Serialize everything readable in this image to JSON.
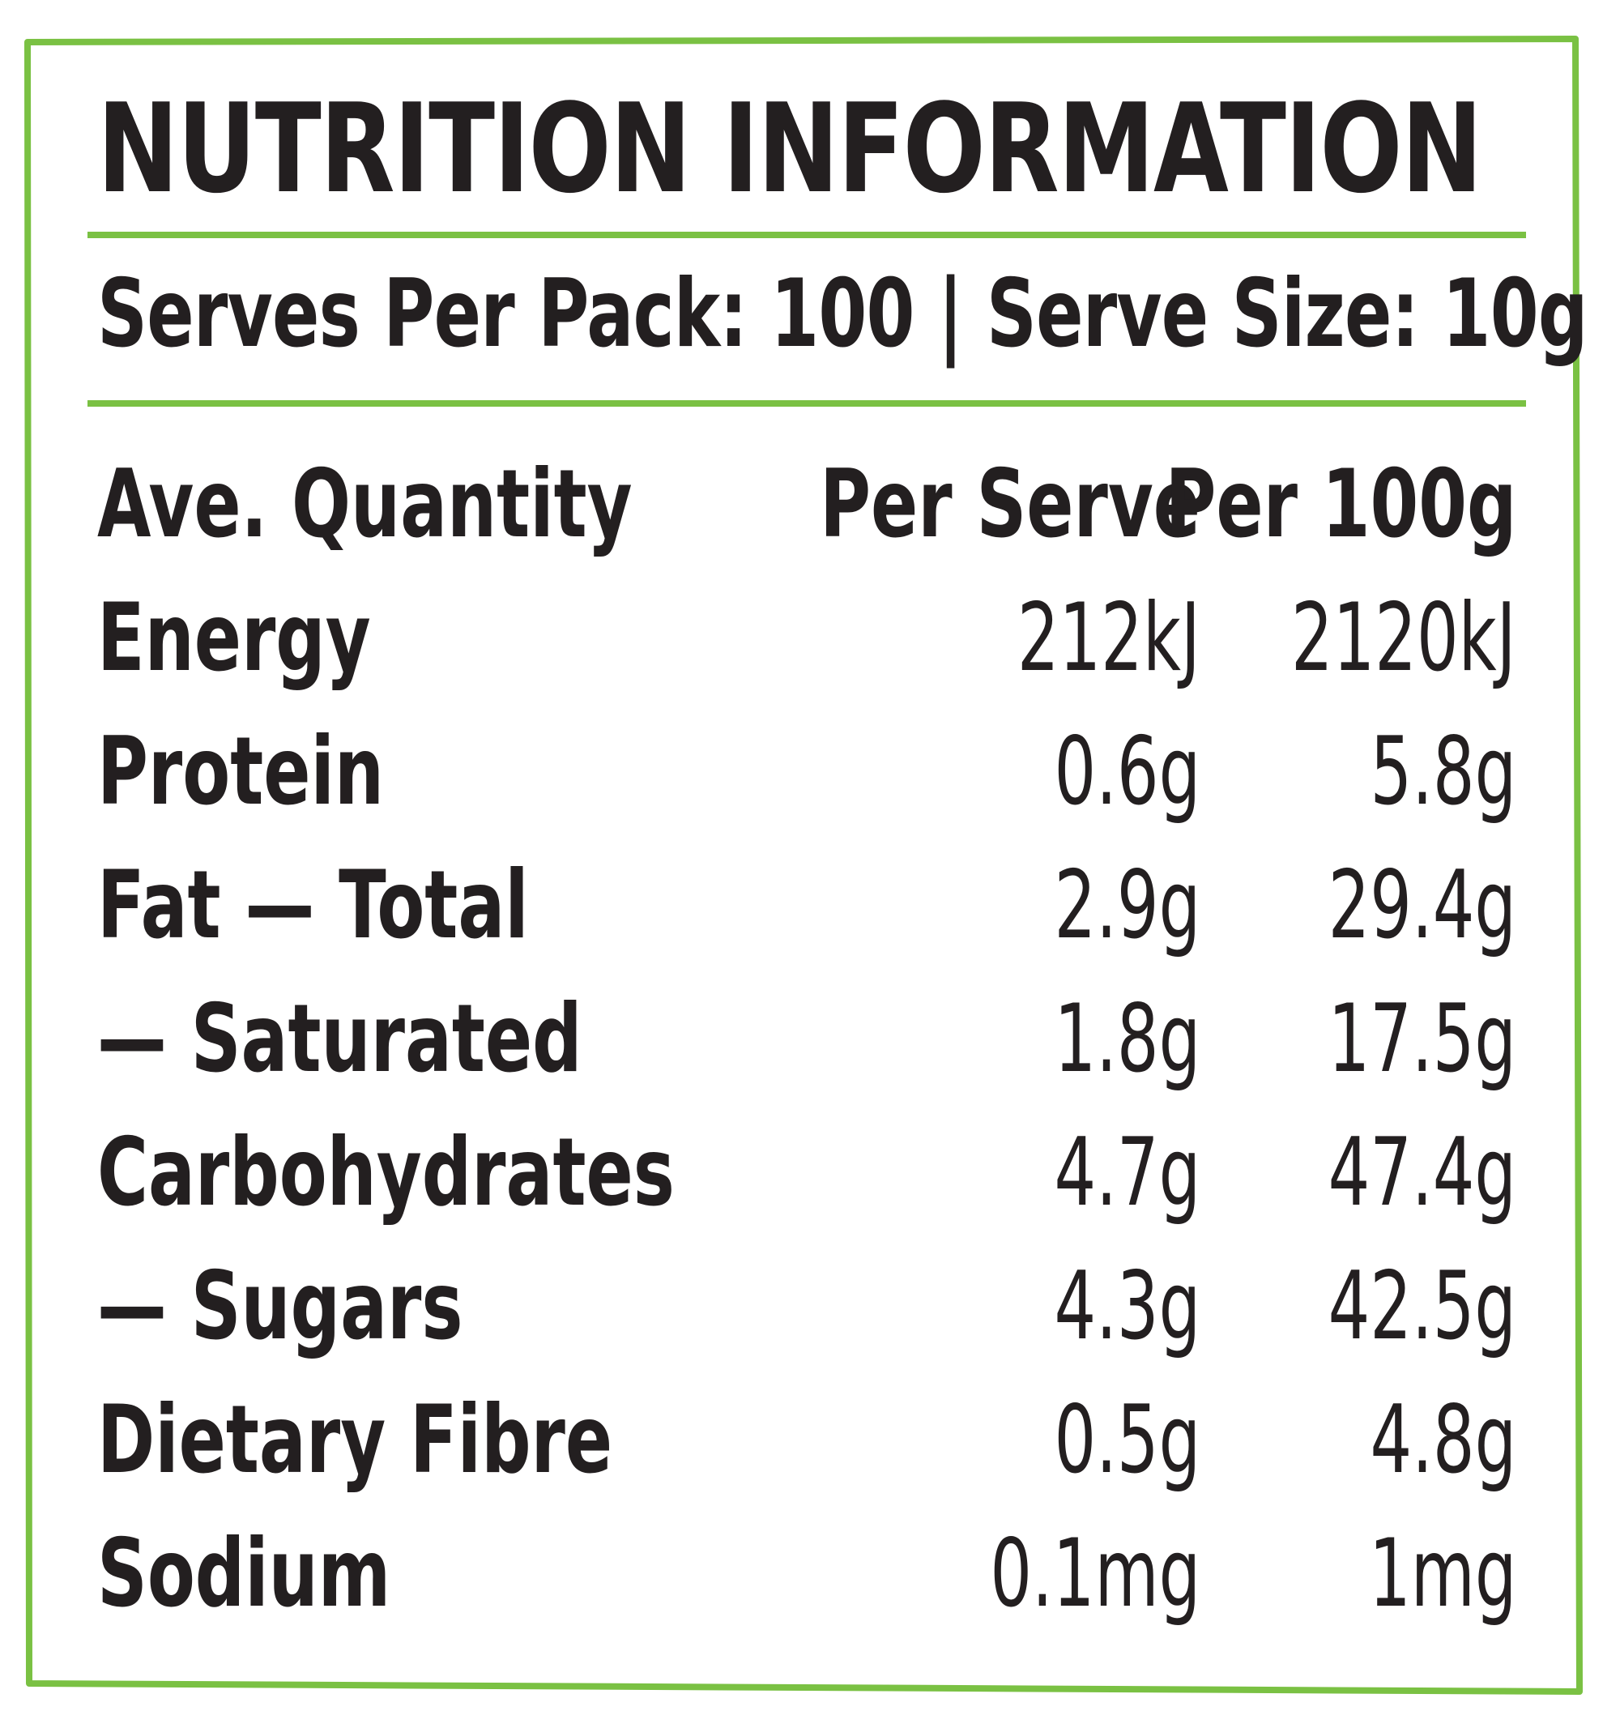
{
  "title": "NUTRITION INFORMATION",
  "serving_line": "Serves Per Pack: 100 | Serve Size: 10g",
  "colors": {
    "border": "#7ac143",
    "text": "#231f20",
    "background": "#ffffff"
  },
  "table": {
    "columns": [
      "Ave. Quantity",
      "Per Serve",
      "Per 100g"
    ],
    "rows": [
      {
        "name": "Energy",
        "per_serve": "212kJ",
        "per_100g": "2120kJ"
      },
      {
        "name": "Protein",
        "per_serve": "0.6g",
        "per_100g": "5.8g"
      },
      {
        "name": "Fat — Total",
        "per_serve": "2.9g",
        "per_100g": "29.4g"
      },
      {
        "name": "— Saturated",
        "per_serve": "1.8g",
        "per_100g": "17.5g"
      },
      {
        "name": "Carbohydrates",
        "per_serve": "4.7g",
        "per_100g": "47.4g"
      },
      {
        "name": "— Sugars",
        "per_serve": "4.3g",
        "per_100g": "42.5g"
      },
      {
        "name": "Dietary Fibre",
        "per_serve": "0.5g",
        "per_100g": "4.8g"
      },
      {
        "name": "Sodium",
        "per_serve": "0.1mg",
        "per_100g": "1mg"
      }
    ]
  }
}
